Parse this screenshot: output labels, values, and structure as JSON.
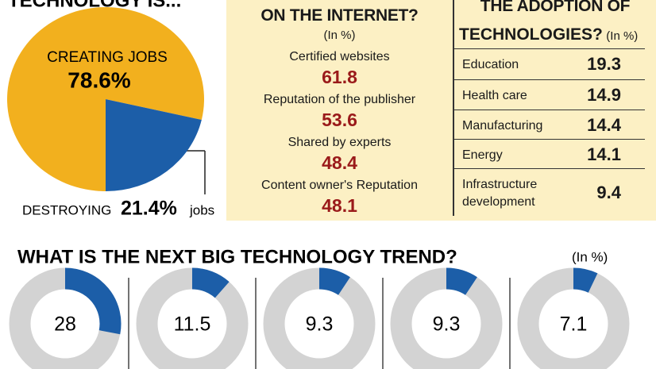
{
  "chart_data": [
    {
      "type": "pie",
      "title": "TECHNOLOGY IS...",
      "categories": [
        "CREATING JOBS",
        "DESTROYING"
      ],
      "values": [
        78.6,
        21.4
      ],
      "value_labels": [
        "78.6%",
        "21.4%"
      ],
      "annotation": "jobs",
      "colors": [
        "#f2b01e",
        "#1c5ea8"
      ]
    },
    {
      "type": "donut",
      "title": "WHAT IS THE NEXT BIG TECHNOLOGY TREND?",
      "unit_note": "(In %)",
      "values": [
        28,
        11.5,
        9.3,
        9.3,
        7.1
      ],
      "color": "#1c5ea8",
      "track_color": "#d3d3d3"
    }
  ],
  "internet_panel": {
    "title": "ON THE INTERNET?",
    "unit_note": "(In %)",
    "items": [
      {
        "label": "Certified websites",
        "value": 61.8
      },
      {
        "label": "Reputation of the publisher",
        "value": 53.6
      },
      {
        "label": "Shared by experts",
        "value": 48.4
      },
      {
        "label": "Content owner's Reputation",
        "value": 48.1
      }
    ]
  },
  "adoption_panel": {
    "title": "THE ADOPTION OF",
    "title_2": "TECHNOLOGIES?",
    "unit_note": "(In %)",
    "rows": [
      {
        "label": "Education",
        "value": 19.3
      },
      {
        "label": "Health care",
        "value": 14.9
      },
      {
        "label": "Manufacturing",
        "value": 14.4
      },
      {
        "label": "Energy",
        "value": 14.1
      },
      {
        "label": "Infrastructure development",
        "value": 9.4
      }
    ]
  }
}
